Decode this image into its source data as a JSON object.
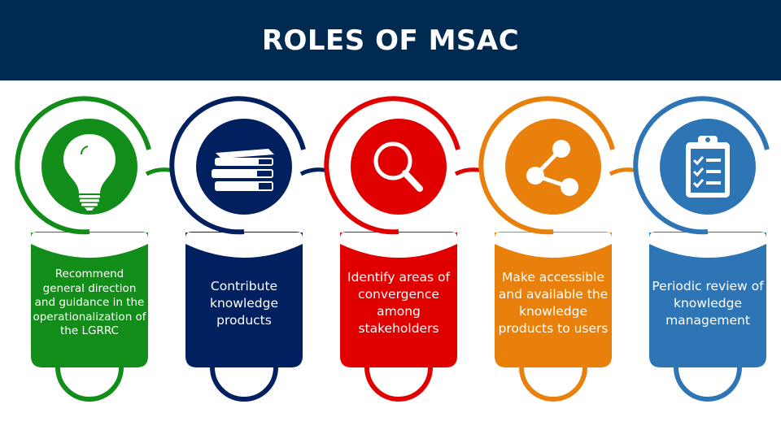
{
  "title": "ROLES OF MSAC",
  "colors": {
    "header": "#002a4f",
    "green": "#138d19",
    "navy": "#002060",
    "red": "#e00000",
    "orange": "#e8800b",
    "blue": "#2e75b6"
  },
  "roles": [
    {
      "icon": "lightbulb-icon",
      "color": "green",
      "text": "Recommend general direction and guidance in the operationalization of the LGRRC"
    },
    {
      "icon": "books-icon",
      "color": "navy",
      "text": "Contribute knowledge products"
    },
    {
      "icon": "magnifier-icon",
      "color": "red",
      "text": "Identify areas of convergence among stakeholders"
    },
    {
      "icon": "share-icon",
      "color": "orange",
      "text": "Make accessible and available the knowledge products to users"
    },
    {
      "icon": "checklist-icon",
      "color": "blue",
      "text": "Periodic review of knowledge management"
    }
  ]
}
